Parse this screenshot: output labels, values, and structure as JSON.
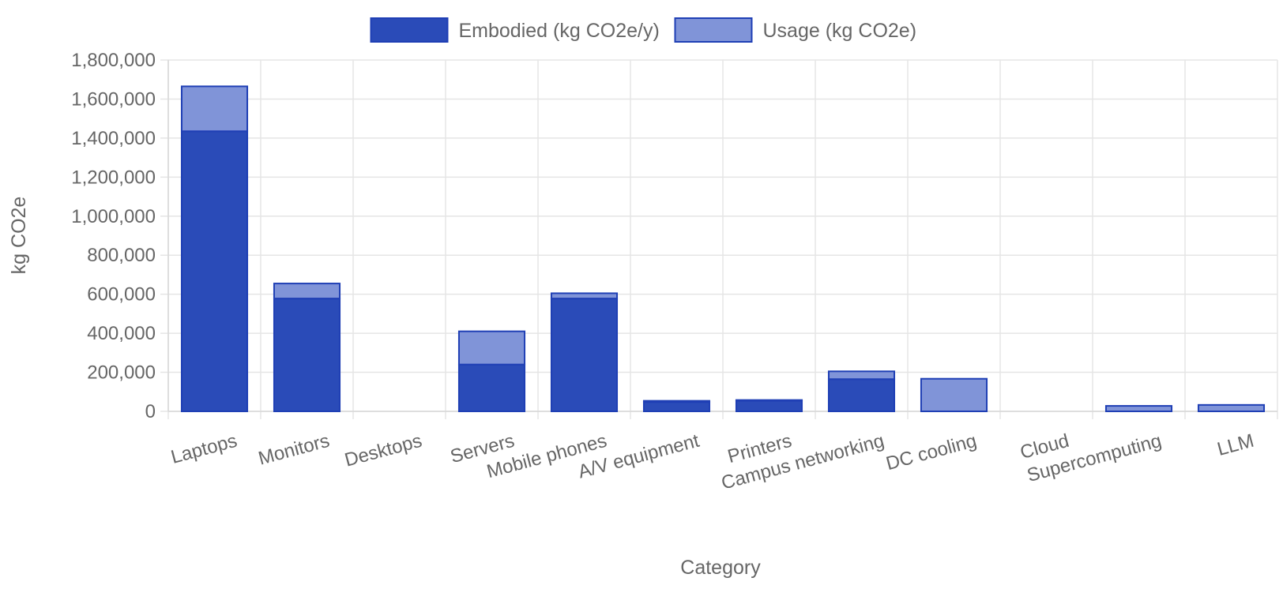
{
  "colors": {
    "embodied_fill": "#2a4bb8",
    "usage_fill": "#8094d8",
    "bar_border": "#1f3fb5",
    "grid": "#e5e5e5",
    "axis_text": "#666666"
  },
  "chart_data": {
    "type": "bar",
    "stacked": true,
    "xlabel": "Category",
    "ylabel": "kg CO2e",
    "ylim": [
      0,
      1800000
    ],
    "yticks": [
      0,
      200000,
      400000,
      600000,
      800000,
      1000000,
      1200000,
      1400000,
      1600000,
      1800000
    ],
    "ytick_labels": [
      "0",
      "200,000",
      "400,000",
      "600,000",
      "800,000",
      "1,000,000",
      "1,200,000",
      "1,400,000",
      "1,600,000",
      "1,800,000"
    ],
    "grid": true,
    "legend_position": "top",
    "categories": [
      "Laptops",
      "Monitors",
      "Desktops",
      "Servers",
      "Mobile phones",
      "A/V equipment",
      "Printers",
      "Campus networking",
      "DC cooling",
      "Cloud",
      "Supercomputing",
      "LLM"
    ],
    "series": [
      {
        "name": "Embodied (kg CO2e/y)",
        "values": [
          1435000,
          578000,
          0,
          240000,
          578000,
          48000,
          55000,
          165000,
          0,
          0,
          0,
          0
        ]
      },
      {
        "name": "Usage (kg CO2e)",
        "values": [
          230000,
          77000,
          0,
          170000,
          27000,
          6000,
          3000,
          40000,
          167000,
          0,
          28000,
          33000
        ]
      }
    ]
  }
}
